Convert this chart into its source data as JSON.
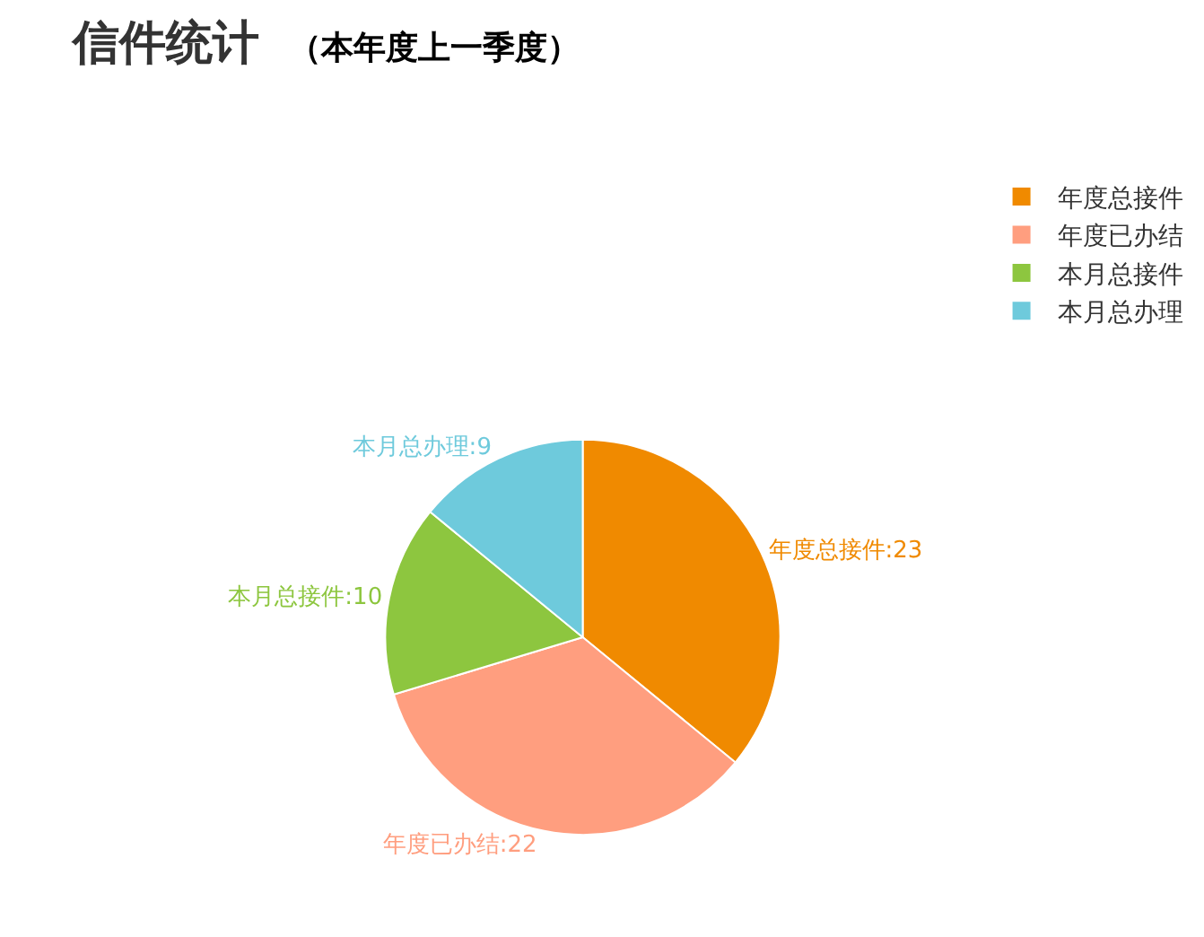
{
  "chart_data": {
    "type": "pie",
    "title": "信件统计",
    "subtitle": "（本年度上一季度）",
    "categories": [
      "年度总接件",
      "年度已办结",
      "本月总接件",
      "本月总办理"
    ],
    "values": [
      23,
      22,
      10,
      9
    ],
    "colors": [
      "#f08a00",
      "#ff9e7f",
      "#8dc63f",
      "#6ecadc"
    ],
    "value_labels": [
      "年度总接件:23",
      "年度已办结:22",
      "本月总接件:10",
      "本月总办理:9"
    ],
    "legend": "top right"
  }
}
